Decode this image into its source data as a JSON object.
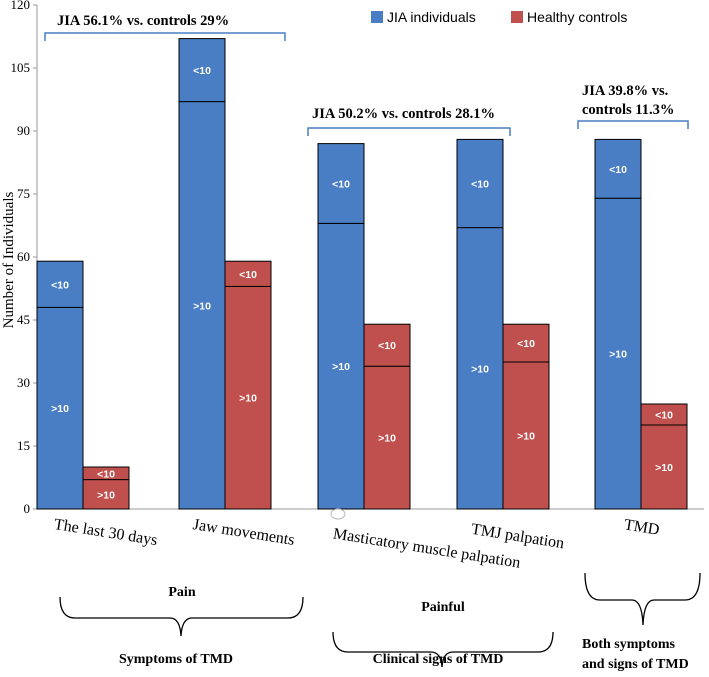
{
  "chart_data": {
    "type": "bar",
    "ylabel": "Number of Individuals",
    "ylim": [
      0,
      120
    ],
    "yticks": [
      0,
      15,
      30,
      45,
      60,
      75,
      90,
      105,
      120
    ],
    "categories": [
      "The last 30 days",
      "Jaw movements",
      "Masticatory muscle palpation",
      "TMJ palpation",
      "TMD"
    ],
    "series": [
      {
        "name": "JIA individuals",
        "color": "#4a7ec4",
        "totals": [
          59,
          112,
          87,
          88,
          88
        ],
        "split": [
          48,
          97,
          68,
          67,
          74
        ]
      },
      {
        "name": "Healthy controls",
        "color": "#c0504d",
        "totals": [
          10,
          59,
          44,
          44,
          25
        ],
        "split": [
          7,
          53,
          34,
          35,
          20
        ]
      }
    ],
    "segment_labels": {
      "lower": ">10",
      "upper": "<10"
    },
    "annotations": [
      {
        "text": "JIA 56.1% vs. controls 29%"
      },
      {
        "text": "JIA 50.2% vs. controls 28.1%"
      },
      {
        "text": "JIA 39.8% vs."
      },
      {
        "text": "controls 11.3%"
      }
    ],
    "groups": [
      {
        "label": "Pain"
      },
      {
        "label": "Symptoms of TMD"
      },
      {
        "label": "Painful"
      },
      {
        "label": "Clinical signs of TMD"
      },
      {
        "label": "Both symptoms"
      },
      {
        "label": "and signs of TMD"
      }
    ]
  }
}
